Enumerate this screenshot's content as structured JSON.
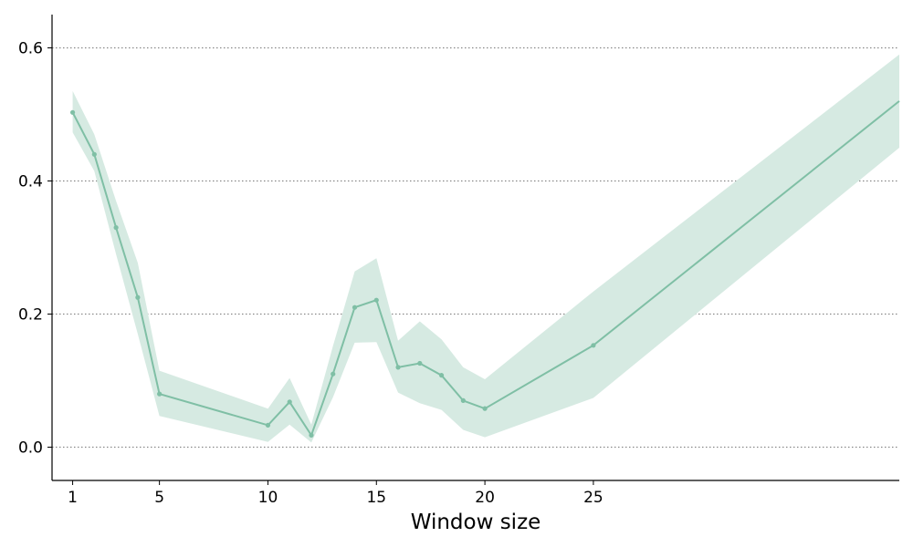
{
  "chart_data": {
    "type": "line",
    "title": "",
    "xlabel": "Window size",
    "ylabel": "",
    "x_ticks": [
      1,
      5,
      10,
      15,
      20,
      25
    ],
    "y_ticks": [
      0.0,
      0.2,
      0.4,
      0.6
    ],
    "y_tick_labels": [
      "0.0",
      "0.2",
      "0.4",
      "0.6"
    ],
    "xlim": [
      0.05,
      39.1
    ],
    "ylim": [
      -0.05,
      0.65
    ],
    "grid": "horizontal dotted",
    "legend": "none",
    "colors": {
      "line": "#7fbfa5",
      "band": "#d6eae2",
      "grid": "#888888",
      "axis": "#000000"
    },
    "series": [
      {
        "x": [
          1,
          2,
          3,
          4,
          5,
          10,
          11,
          12,
          13,
          14,
          15,
          16,
          17,
          18,
          19,
          20,
          25,
          39.1
        ],
        "values": [
          0.503,
          0.44,
          0.33,
          0.225,
          0.08,
          0.033,
          0.068,
          0.018,
          0.11,
          0.21,
          0.221,
          0.12,
          0.126,
          0.108,
          0.07,
          0.058,
          0.153,
          0.52
        ],
        "lower": [
          0.473,
          0.415,
          0.29,
          0.17,
          0.047,
          0.008,
          0.034,
          0.007,
          0.075,
          0.157,
          0.158,
          0.082,
          0.066,
          0.056,
          0.026,
          0.015,
          0.074,
          0.45
        ],
        "upper": [
          0.535,
          0.47,
          0.37,
          0.277,
          0.115,
          0.058,
          0.104,
          0.034,
          0.152,
          0.264,
          0.284,
          0.16,
          0.189,
          0.162,
          0.12,
          0.102,
          0.234,
          0.59
        ]
      }
    ]
  }
}
